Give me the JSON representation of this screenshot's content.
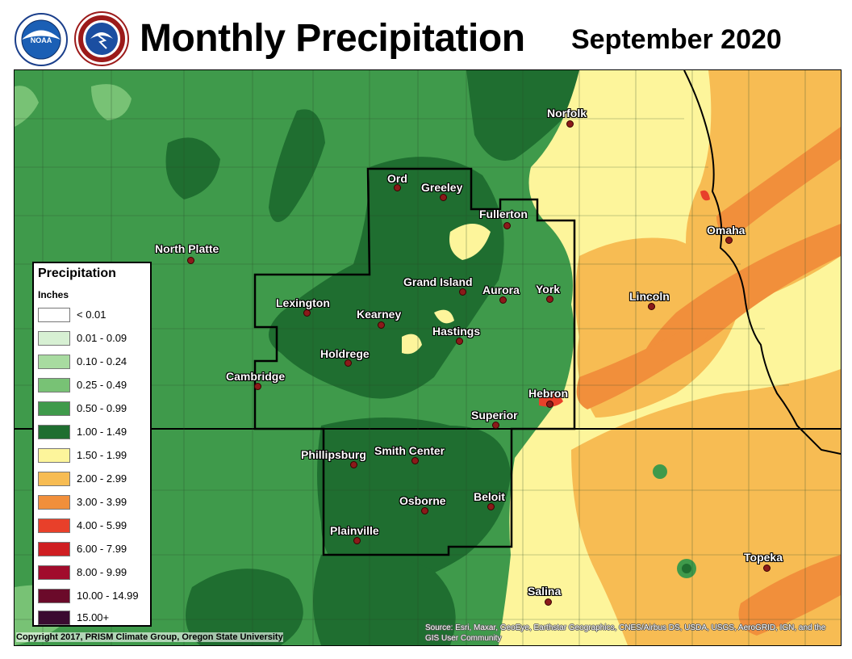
{
  "header": {
    "title": "Monthly Precipitation",
    "subtitle": "September 2020"
  },
  "colors": {
    "lt_0_01": "#ffffff",
    "r_0_01": "#d7f0d3",
    "r_0_10": "#a8dba0",
    "r_0_25": "#78c275",
    "r_0_50": "#3f9a4b",
    "r_1_00": "#1f6e30",
    "r_1_50": "#fdf59b",
    "r_2_00": "#f7bc53",
    "r_3_00": "#f18f3b",
    "r_4_00": "#e8402a",
    "r_6_00": "#cf1e22",
    "r_8_00": "#a10c2c",
    "r_10_00": "#6b0a2a",
    "r_15_00": "#3a0a30"
  },
  "legend": {
    "title": "Precipitation",
    "units": "Inches",
    "items": [
      {
        "label": "< 0.01",
        "color": "#ffffff"
      },
      {
        "label": "0.01 - 0.09",
        "color": "#d7f0d3"
      },
      {
        "label": "0.10 - 0.24",
        "color": "#a8dba0"
      },
      {
        "label": "0.25 - 0.49",
        "color": "#78c275"
      },
      {
        "label": "0.50 - 0.99",
        "color": "#3f9a4b"
      },
      {
        "label": "1.00 - 1.49",
        "color": "#1f6e30"
      },
      {
        "label": "1.50 - 1.99",
        "color": "#fdf59b"
      },
      {
        "label": "2.00 - 2.99",
        "color": "#f7bc53"
      },
      {
        "label": "3.00 - 3.99",
        "color": "#f18f3b"
      },
      {
        "label": "4.00 - 5.99",
        "color": "#e8402a"
      },
      {
        "label": "6.00 - 7.99",
        "color": "#cf1e22"
      },
      {
        "label": "8.00 - 9.99",
        "color": "#a10c2c"
      },
      {
        "label": "10.00 - 14.99",
        "color": "#6b0a2a"
      },
      {
        "label": "15.00+",
        "color": "#3a0a30"
      }
    ]
  },
  "cities": [
    {
      "name": "Norfolk"
    },
    {
      "name": "Ord"
    },
    {
      "name": "Greeley"
    },
    {
      "name": "Fullerton"
    },
    {
      "name": "Omaha"
    },
    {
      "name": "North Platte"
    },
    {
      "name": "Grand Island"
    },
    {
      "name": "Aurora"
    },
    {
      "name": "York"
    },
    {
      "name": "Lincoln"
    },
    {
      "name": "Lexington"
    },
    {
      "name": "Kearney"
    },
    {
      "name": "Hastings"
    },
    {
      "name": "Holdrege"
    },
    {
      "name": "Cambridge"
    },
    {
      "name": "Hebron"
    },
    {
      "name": "Superior"
    },
    {
      "name": "Phillipsburg"
    },
    {
      "name": "Smith Center"
    },
    {
      "name": "Osborne"
    },
    {
      "name": "Beloit"
    },
    {
      "name": "Plainville"
    },
    {
      "name": "Topeka"
    },
    {
      "name": "Salina"
    }
  ],
  "footer": {
    "copyright": "Copyright 2017, PRISM Climate Group, Oregon State University",
    "sources": "Source: Esri, Maxar, GeoEye, Earthstar Geographics, CNES/Airbus DS, USDA, USGS, AeroGRID, IGN, and the GIS User Community"
  }
}
